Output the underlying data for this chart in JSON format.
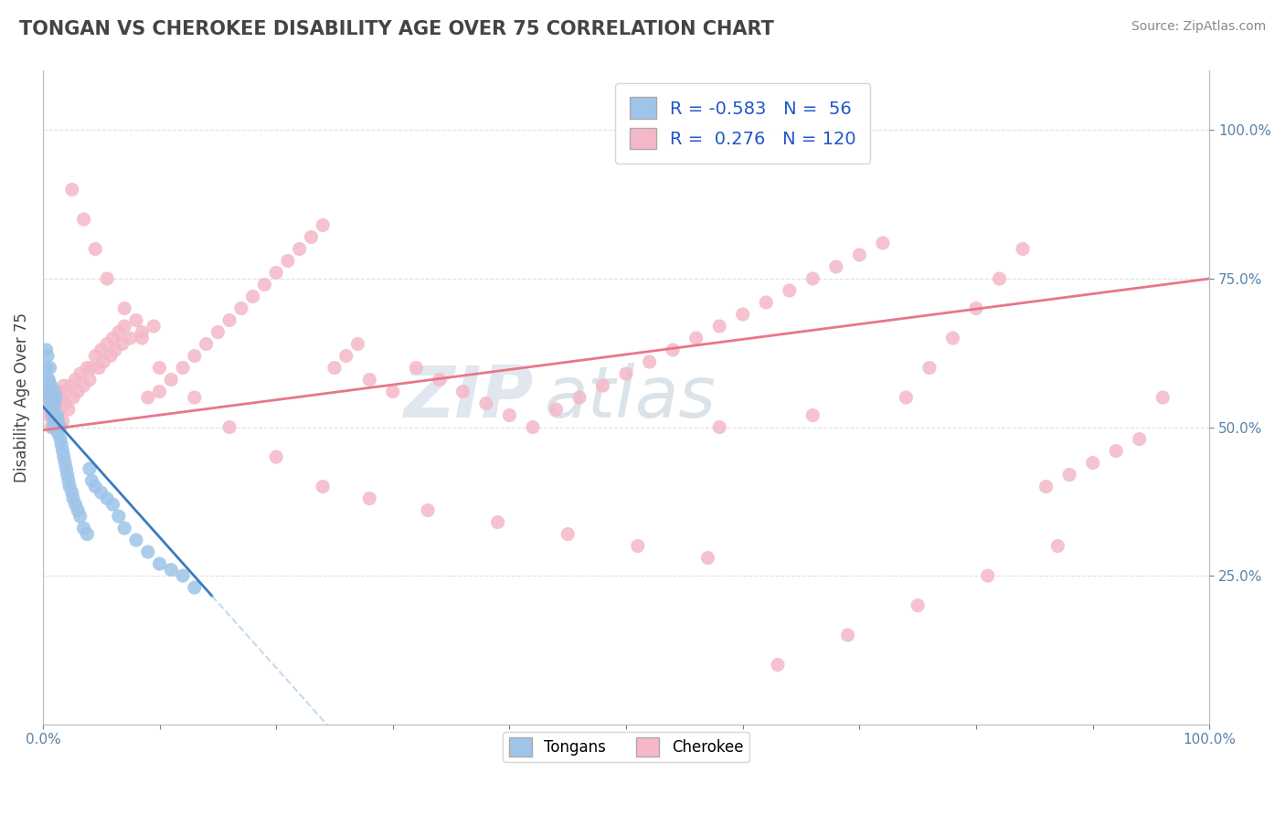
{
  "title": "TONGAN VS CHEROKEE DISABILITY AGE OVER 75 CORRELATION CHART",
  "source_text": "Source: ZipAtlas.com",
  "ylabel": "Disability Age Over 75",
  "xlim": [
    0.0,
    1.0
  ],
  "ylim": [
    0.0,
    1.1
  ],
  "ytick_positions": [
    0.25,
    0.5,
    0.75,
    1.0
  ],
  "legend_label_tongans": "Tongans",
  "legend_label_cherokee": "Cherokee",
  "tongans_color": "#9ec4e8",
  "cherokee_color": "#f4b8c8",
  "trendline_tongans_color": "#3a7abf",
  "trendline_cherokee_color": "#e8768a",
  "watermark_text_zip": "ZIP",
  "watermark_text_atlas": "atlas",
  "watermark_color_zip": "#d0dce8",
  "watermark_color_atlas": "#b8ccd8",
  "background_color": "#ffffff",
  "grid_color": "#cccccc",
  "title_color": "#444444",
  "axis_label_color": "#5a82aa",
  "legend_text_color": "#2255cc",
  "r_tongans": -0.583,
  "n_tongans": 56,
  "r_cherokee": 0.276,
  "n_cherokee": 120,
  "tongans_x": [
    0.002,
    0.003,
    0.004,
    0.005,
    0.005,
    0.006,
    0.006,
    0.007,
    0.007,
    0.008,
    0.008,
    0.009,
    0.009,
    0.01,
    0.01,
    0.01,
    0.011,
    0.011,
    0.012,
    0.012,
    0.013,
    0.013,
    0.014,
    0.015,
    0.015,
    0.016,
    0.017,
    0.018,
    0.019,
    0.02,
    0.021,
    0.022,
    0.023,
    0.025,
    0.026,
    0.028,
    0.03,
    0.032,
    0.035,
    0.038,
    0.04,
    0.042,
    0.045,
    0.05,
    0.055,
    0.06,
    0.065,
    0.07,
    0.08,
    0.09,
    0.1,
    0.11,
    0.12,
    0.13,
    0.003,
    0.004
  ],
  "tongans_y": [
    0.56,
    0.6,
    0.62,
    0.55,
    0.58,
    0.57,
    0.6,
    0.54,
    0.57,
    0.52,
    0.55,
    0.5,
    0.53,
    0.51,
    0.54,
    0.56,
    0.52,
    0.55,
    0.5,
    0.52,
    0.49,
    0.51,
    0.5,
    0.48,
    0.5,
    0.47,
    0.46,
    0.45,
    0.44,
    0.43,
    0.42,
    0.41,
    0.4,
    0.39,
    0.38,
    0.37,
    0.36,
    0.35,
    0.33,
    0.32,
    0.43,
    0.41,
    0.4,
    0.39,
    0.38,
    0.37,
    0.35,
    0.33,
    0.31,
    0.29,
    0.27,
    0.26,
    0.25,
    0.23,
    0.63,
    0.58
  ],
  "cherokee_x": [
    0.003,
    0.005,
    0.006,
    0.007,
    0.008,
    0.009,
    0.01,
    0.011,
    0.012,
    0.013,
    0.014,
    0.015,
    0.016,
    0.017,
    0.018,
    0.019,
    0.02,
    0.022,
    0.024,
    0.026,
    0.028,
    0.03,
    0.032,
    0.035,
    0.038,
    0.04,
    0.042,
    0.045,
    0.048,
    0.05,
    0.052,
    0.055,
    0.058,
    0.06,
    0.062,
    0.065,
    0.068,
    0.07,
    0.075,
    0.08,
    0.085,
    0.09,
    0.095,
    0.1,
    0.11,
    0.12,
    0.13,
    0.14,
    0.15,
    0.16,
    0.17,
    0.18,
    0.19,
    0.2,
    0.21,
    0.22,
    0.23,
    0.24,
    0.25,
    0.26,
    0.27,
    0.28,
    0.3,
    0.32,
    0.34,
    0.36,
    0.38,
    0.4,
    0.42,
    0.44,
    0.46,
    0.48,
    0.5,
    0.52,
    0.54,
    0.56,
    0.58,
    0.6,
    0.62,
    0.64,
    0.66,
    0.68,
    0.7,
    0.72,
    0.74,
    0.76,
    0.78,
    0.8,
    0.82,
    0.84,
    0.86,
    0.88,
    0.9,
    0.92,
    0.94,
    0.96,
    0.025,
    0.035,
    0.045,
    0.055,
    0.07,
    0.085,
    0.1,
    0.13,
    0.16,
    0.2,
    0.24,
    0.28,
    0.33,
    0.39,
    0.45,
    0.51,
    0.57,
    0.63,
    0.69,
    0.75,
    0.81,
    0.87,
    0.66,
    0.58
  ],
  "cherokee_y": [
    0.55,
    0.52,
    0.54,
    0.5,
    0.53,
    0.51,
    0.55,
    0.52,
    0.54,
    0.5,
    0.56,
    0.53,
    0.55,
    0.51,
    0.57,
    0.54,
    0.56,
    0.53,
    0.57,
    0.55,
    0.58,
    0.56,
    0.59,
    0.57,
    0.6,
    0.58,
    0.6,
    0.62,
    0.6,
    0.63,
    0.61,
    0.64,
    0.62,
    0.65,
    0.63,
    0.66,
    0.64,
    0.67,
    0.65,
    0.68,
    0.66,
    0.55,
    0.67,
    0.56,
    0.58,
    0.6,
    0.62,
    0.64,
    0.66,
    0.68,
    0.7,
    0.72,
    0.74,
    0.76,
    0.78,
    0.8,
    0.82,
    0.84,
    0.6,
    0.62,
    0.64,
    0.58,
    0.56,
    0.6,
    0.58,
    0.56,
    0.54,
    0.52,
    0.5,
    0.53,
    0.55,
    0.57,
    0.59,
    0.61,
    0.63,
    0.65,
    0.67,
    0.69,
    0.71,
    0.73,
    0.75,
    0.77,
    0.79,
    0.81,
    0.55,
    0.6,
    0.65,
    0.7,
    0.75,
    0.8,
    0.4,
    0.42,
    0.44,
    0.46,
    0.48,
    0.55,
    0.9,
    0.85,
    0.8,
    0.75,
    0.7,
    0.65,
    0.6,
    0.55,
    0.5,
    0.45,
    0.4,
    0.38,
    0.36,
    0.34,
    0.32,
    0.3,
    0.28,
    0.1,
    0.15,
    0.2,
    0.25,
    0.3,
    0.52,
    0.5
  ]
}
